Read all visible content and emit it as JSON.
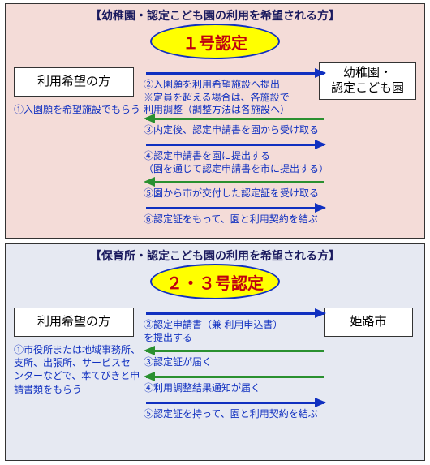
{
  "colors": {
    "blue": "#1030c0",
    "green": "#2a9030"
  },
  "top": {
    "title": "【幼稚園・認定こども園の利用を希望される方】",
    "badge": "１号認定",
    "leftBox": "利用希望の方",
    "rightBox": "幼稚園・\n認定こども園",
    "leftNote": "①入園願を希望施設でもらう",
    "steps": [
      {
        "dir": "r",
        "color": "blue",
        "label": "②入園願を利用希望施設へ提出\n※定員を超える場合は、各施設で\n利用調整（調整方法は各施設へ）"
      },
      {
        "dir": "l",
        "color": "green",
        "label": "③内定後、認定申請書を園から受け取る"
      },
      {
        "dir": "r",
        "color": "blue",
        "label": "④認定申請書を園に提出する\n（園を通じて認定申請書を市に提出する）"
      },
      {
        "dir": "l",
        "color": "green",
        "label": "⑤園から市が交付した認定証を受け取る"
      },
      {
        "dir": "r",
        "color": "blue",
        "label": "⑥認定証をもって、園と利用契約を結ぶ"
      }
    ]
  },
  "bottom": {
    "title": "【保育所・認定こども園の利用を希望される方】",
    "badge": "２・３号認定",
    "leftBox": "利用希望の方",
    "rightBox": "姫路市",
    "leftNote": "①市役所または地域事務所、\n支所、出張所、サービスセ\nンターなどで、本てびきと申請書類をもらう",
    "steps": [
      {
        "dir": "r",
        "color": "blue",
        "label": "②認定申請書（兼 利用申込書）\nを提出する"
      },
      {
        "dir": "l",
        "color": "green",
        "label": "③認定証が届く"
      },
      {
        "dir": "l",
        "color": "green",
        "label": "④利用調整結果通知が届く"
      },
      {
        "dir": "r",
        "color": "blue",
        "label": "⑤認定証を持って、園と利用契約を結ぶ"
      }
    ]
  }
}
